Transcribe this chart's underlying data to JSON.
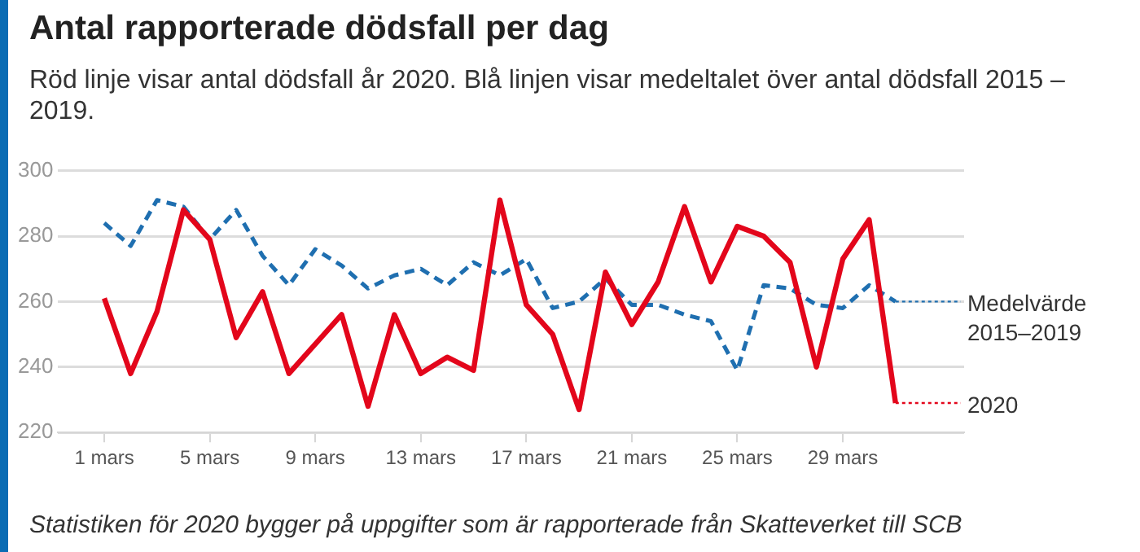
{
  "chart_data": {
    "type": "line",
    "title": "Antal rapporterade dödsfall per dag",
    "subtitle": "Röd linje visar antal dödsfall år 2020. Blå linjen visar medeltalet över antal dödsfall 2015 – 2019.",
    "annotations": [
      "Statistiken för 2020 bygger på uppgifter som är rapporterade från Skatteverket till SCB"
    ],
    "categories": [
      "1 mars",
      null,
      null,
      null,
      "5 mars",
      null,
      null,
      null,
      "9 mars",
      null,
      null,
      null,
      "13 mars",
      null,
      null,
      null,
      "17 mars",
      null,
      null,
      null,
      "21 mars",
      null,
      null,
      null,
      "25 mars",
      null,
      null,
      null,
      "29 mars",
      null,
      null
    ],
    "series": [
      {
        "name": "Medelvärde 2015–2019",
        "color": "#1f6fb0",
        "line_style": "dashed",
        "values": [
          284,
          277,
          291,
          289,
          279,
          288,
          274,
          265,
          276,
          271,
          264,
          268,
          270,
          265,
          272,
          268,
          273,
          258,
          260,
          267,
          259,
          259,
          256,
          254,
          239,
          265,
          264,
          259,
          258,
          265,
          260
        ]
      },
      {
        "name": "2020",
        "color": "#e3061b",
        "line_style": "solid",
        "values": [
          261,
          238,
          257,
          288,
          279,
          249,
          263,
          238,
          247,
          256,
          228,
          256,
          238,
          243,
          239,
          291,
          259,
          250,
          227,
          269,
          253,
          266,
          289,
          266,
          283,
          280,
          272,
          240,
          273,
          285,
          229
        ]
      }
    ],
    "ylim": [
      220,
      300
    ],
    "yticks": [
      220,
      240,
      260,
      280,
      300
    ],
    "grid": "y",
    "marker": "none",
    "legend": "right"
  }
}
